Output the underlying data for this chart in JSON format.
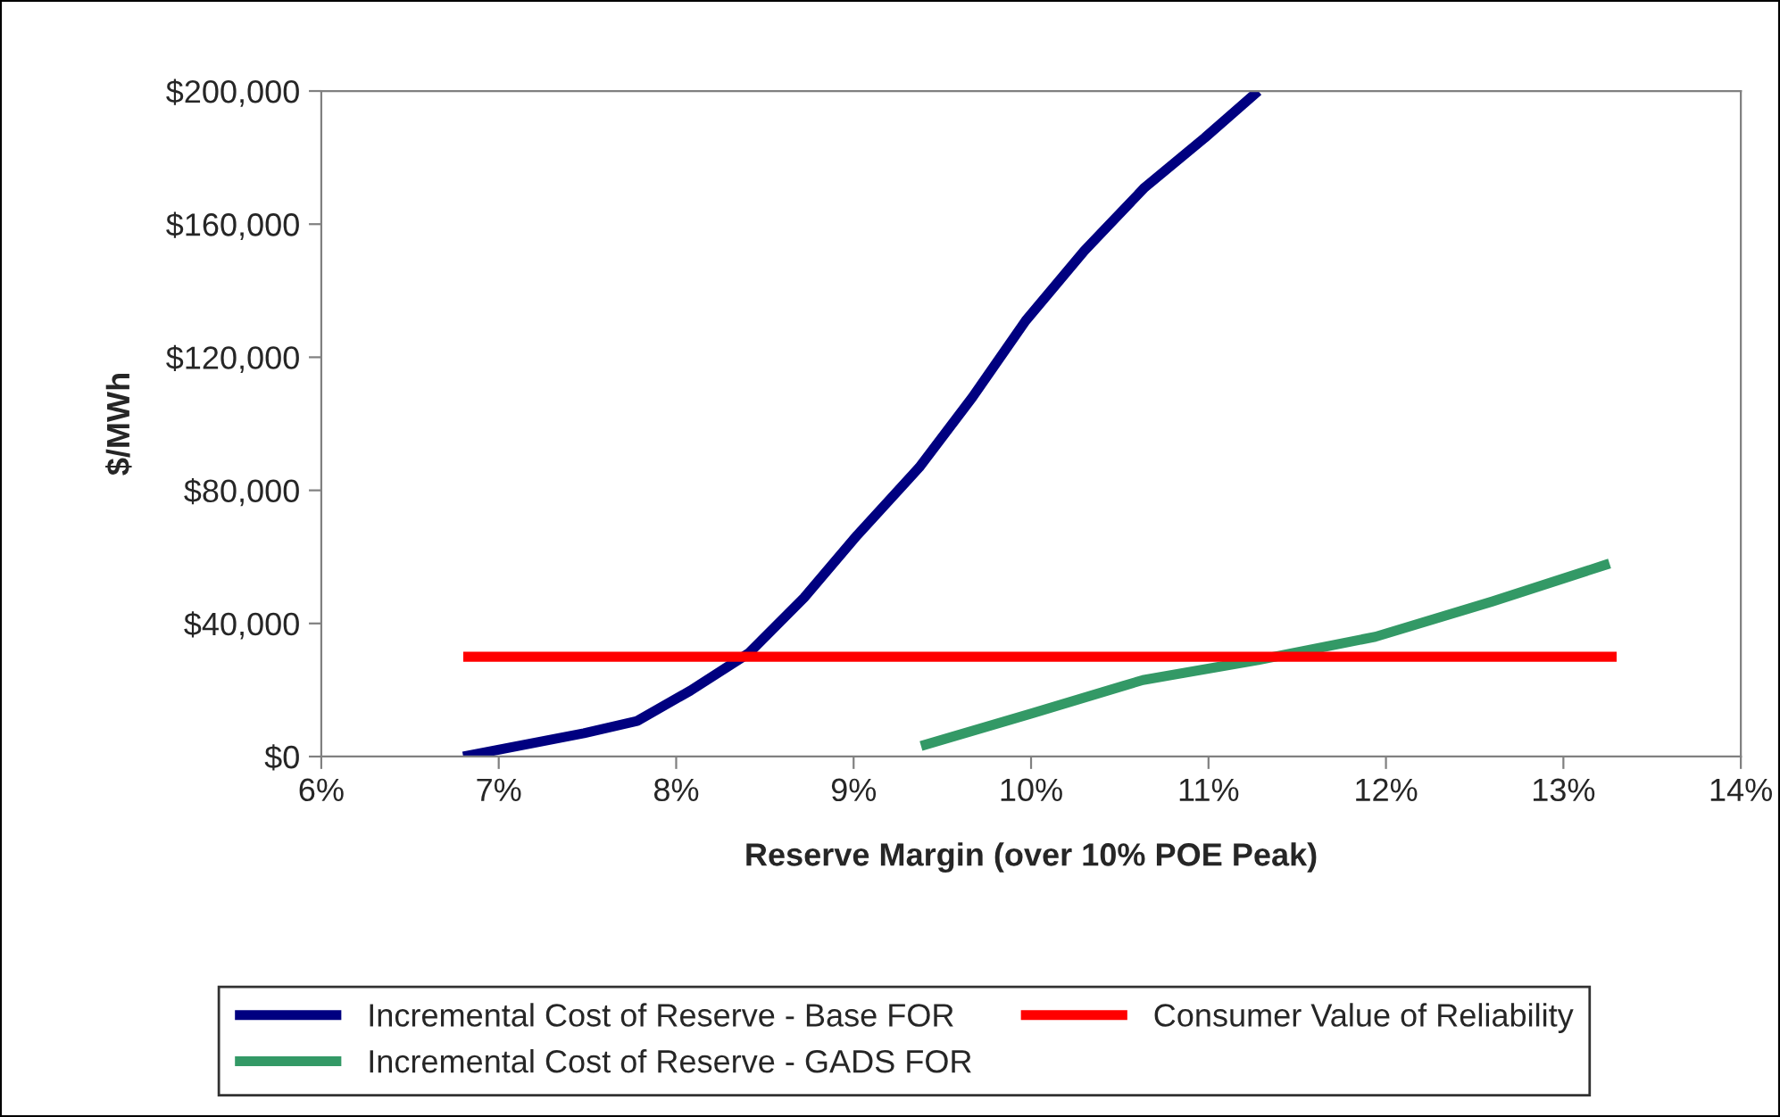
{
  "chart_data": {
    "type": "line",
    "xlabel": "Reserve Margin (over 10% POE Peak)",
    "ylabel": "$/MWh",
    "series": [
      {
        "name": "Incremental Cost of Reserve - Base FOR",
        "color": "#000080",
        "x": [
          6.8,
          7.48,
          7.78,
          8.08,
          8.41,
          8.72,
          9.02,
          9.37,
          9.67,
          9.97,
          10.3,
          10.64,
          10.98,
          11.28
        ],
        "values": [
          0,
          7000,
          10700,
          19800,
          31100,
          47700,
          66500,
          86900,
          108000,
          131000,
          152000,
          171000,
          186000,
          200000
        ]
      },
      {
        "name": "Incremental Cost of Reserve - GADS FOR",
        "color": "#339966",
        "x": [
          9.38,
          10.0,
          10.63,
          11.28,
          11.94,
          12.6,
          13.26
        ],
        "values": [
          3200,
          12900,
          23000,
          29000,
          36000,
          46600,
          58000
        ]
      },
      {
        "name": "Consumer Value of Reliability",
        "color": "#ff0000",
        "x": [
          6.8,
          13.3
        ],
        "values": [
          30000,
          30000
        ]
      }
    ],
    "xlim": [
      6,
      14
    ],
    "xticks": [
      {
        "value": 6,
        "label": "6%"
      },
      {
        "value": 7,
        "label": "7%"
      },
      {
        "value": 8,
        "label": "8%"
      },
      {
        "value": 9,
        "label": "9%"
      },
      {
        "value": 10,
        "label": "10%"
      },
      {
        "value": 11,
        "label": "11%"
      },
      {
        "value": 12,
        "label": "12%"
      },
      {
        "value": 13,
        "label": "13%"
      },
      {
        "value": 14,
        "label": "14%"
      }
    ],
    "ylim": [
      0,
      200000
    ],
    "yticks": [
      {
        "value": 0,
        "label": "$0"
      },
      {
        "value": 40000,
        "label": "$40,000"
      },
      {
        "value": 80000,
        "label": "$80,000"
      },
      {
        "value": 120000,
        "label": "$120,000"
      },
      {
        "value": 160000,
        "label": "$160,000"
      },
      {
        "value": 200000,
        "label": "$200,000"
      }
    ],
    "grid": false,
    "legend": "bottom",
    "marker": "none",
    "line_style": "solid"
  }
}
